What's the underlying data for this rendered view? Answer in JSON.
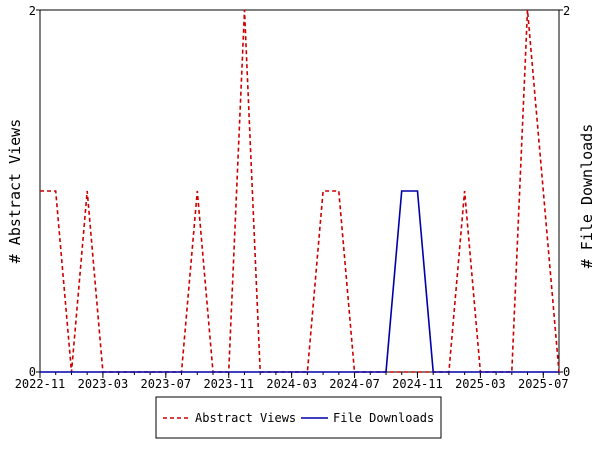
{
  "chart_data": {
    "type": "line",
    "xlabel": "",
    "ylabel_left": "# Abstract Views",
    "ylabel_right": "# File Downloads",
    "ylim_left": [
      0,
      2
    ],
    "ylim_right": [
      0,
      2
    ],
    "y_ticks_left": [
      "0",
      "2"
    ],
    "y_ticks_right": [
      "0",
      "2"
    ],
    "x_tick_labels": [
      "2022-11",
      "2023-03",
      "2023-07",
      "2023-11",
      "2024-03",
      "2024-07",
      "2024-11",
      "2025-03",
      "2025-07"
    ],
    "grid": "none",
    "legend_placement": "bottom-center",
    "colors": {
      "abstract_views": "#cc0000",
      "file_downloads": "#0000aa"
    },
    "x": [
      "2022-11",
      "2022-12",
      "2023-01",
      "2023-02",
      "2023-03",
      "2023-04",
      "2023-05",
      "2023-06",
      "2023-07",
      "2023-08",
      "2023-09",
      "2023-10",
      "2023-11",
      "2023-12",
      "2024-01",
      "2024-02",
      "2024-03",
      "2024-04",
      "2024-05",
      "2024-06",
      "2024-07",
      "2024-08",
      "2024-09",
      "2024-10",
      "2024-11",
      "2024-12",
      "2025-01",
      "2025-02",
      "2025-03",
      "2025-04",
      "2025-05",
      "2025-06",
      "2025-07",
      "2025-08"
    ],
    "series": [
      {
        "name": "Abstract Views",
        "axis": "left",
        "style": "dashed",
        "values": [
          1,
          1,
          0,
          1,
          0,
          0,
          0,
          0,
          0,
          0,
          1,
          0,
          0,
          2,
          0,
          0,
          0,
          0,
          1,
          1,
          0,
          0,
          0,
          0,
          0,
          0,
          0,
          1,
          0,
          0,
          0,
          2,
          1,
          0
        ]
      },
      {
        "name": "File Downloads",
        "axis": "right",
        "style": "solid",
        "values": [
          0,
          0,
          0,
          0,
          0,
          0,
          0,
          0,
          0,
          0,
          0,
          0,
          0,
          0,
          0,
          0,
          0,
          0,
          0,
          0,
          0,
          0,
          0,
          1,
          1,
          0,
          0,
          0,
          0,
          0,
          0,
          0,
          0,
          0
        ]
      }
    ]
  }
}
